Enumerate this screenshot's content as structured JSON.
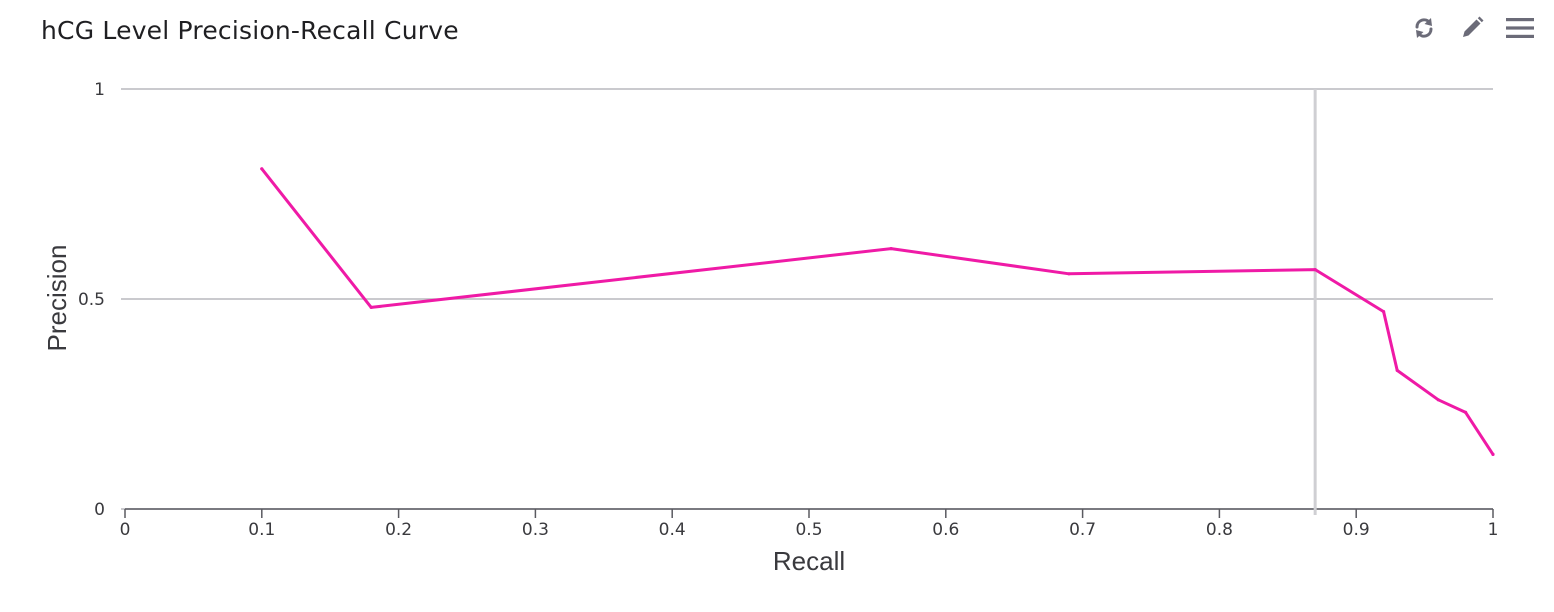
{
  "panel": {
    "title": "hCG Level Precision-Recall Curve",
    "toolbar": {
      "refresh_icon": "refresh-icon",
      "edit_icon": "pencil-icon",
      "menu_icon": "hamburger-menu-icon",
      "icon_color": "#6b6b78"
    }
  },
  "chart_data": {
    "type": "line",
    "title": "hCG Level Precision-Recall Curve",
    "xlabel": "Recall",
    "ylabel": "Precision",
    "xlim": [
      0,
      1
    ],
    "ylim": [
      0,
      1
    ],
    "x_ticks": [
      "0",
      "0.1",
      "0.2",
      "0.3",
      "0.4",
      "0.5",
      "0.6",
      "0.7",
      "0.8",
      "0.9",
      "1"
    ],
    "x_tick_values": [
      0,
      0.1,
      0.2,
      0.3,
      0.4,
      0.5,
      0.6,
      0.7,
      0.8,
      0.9,
      1
    ],
    "y_ticks": [
      "0",
      "0.5",
      "1"
    ],
    "y_tick_values": [
      0,
      0.5,
      1
    ],
    "grid": "horizontal",
    "legend": "none",
    "marker_x": 0.87,
    "series": [
      {
        "color": "#ef1aa6",
        "x": [
          0.1,
          0.18,
          0.56,
          0.69,
          0.87,
          0.92,
          0.93,
          0.96,
          0.98,
          1.0
        ],
        "y": [
          0.81,
          0.48,
          0.62,
          0.56,
          0.57,
          0.47,
          0.33,
          0.26,
          0.23,
          0.13
        ]
      }
    ]
  }
}
